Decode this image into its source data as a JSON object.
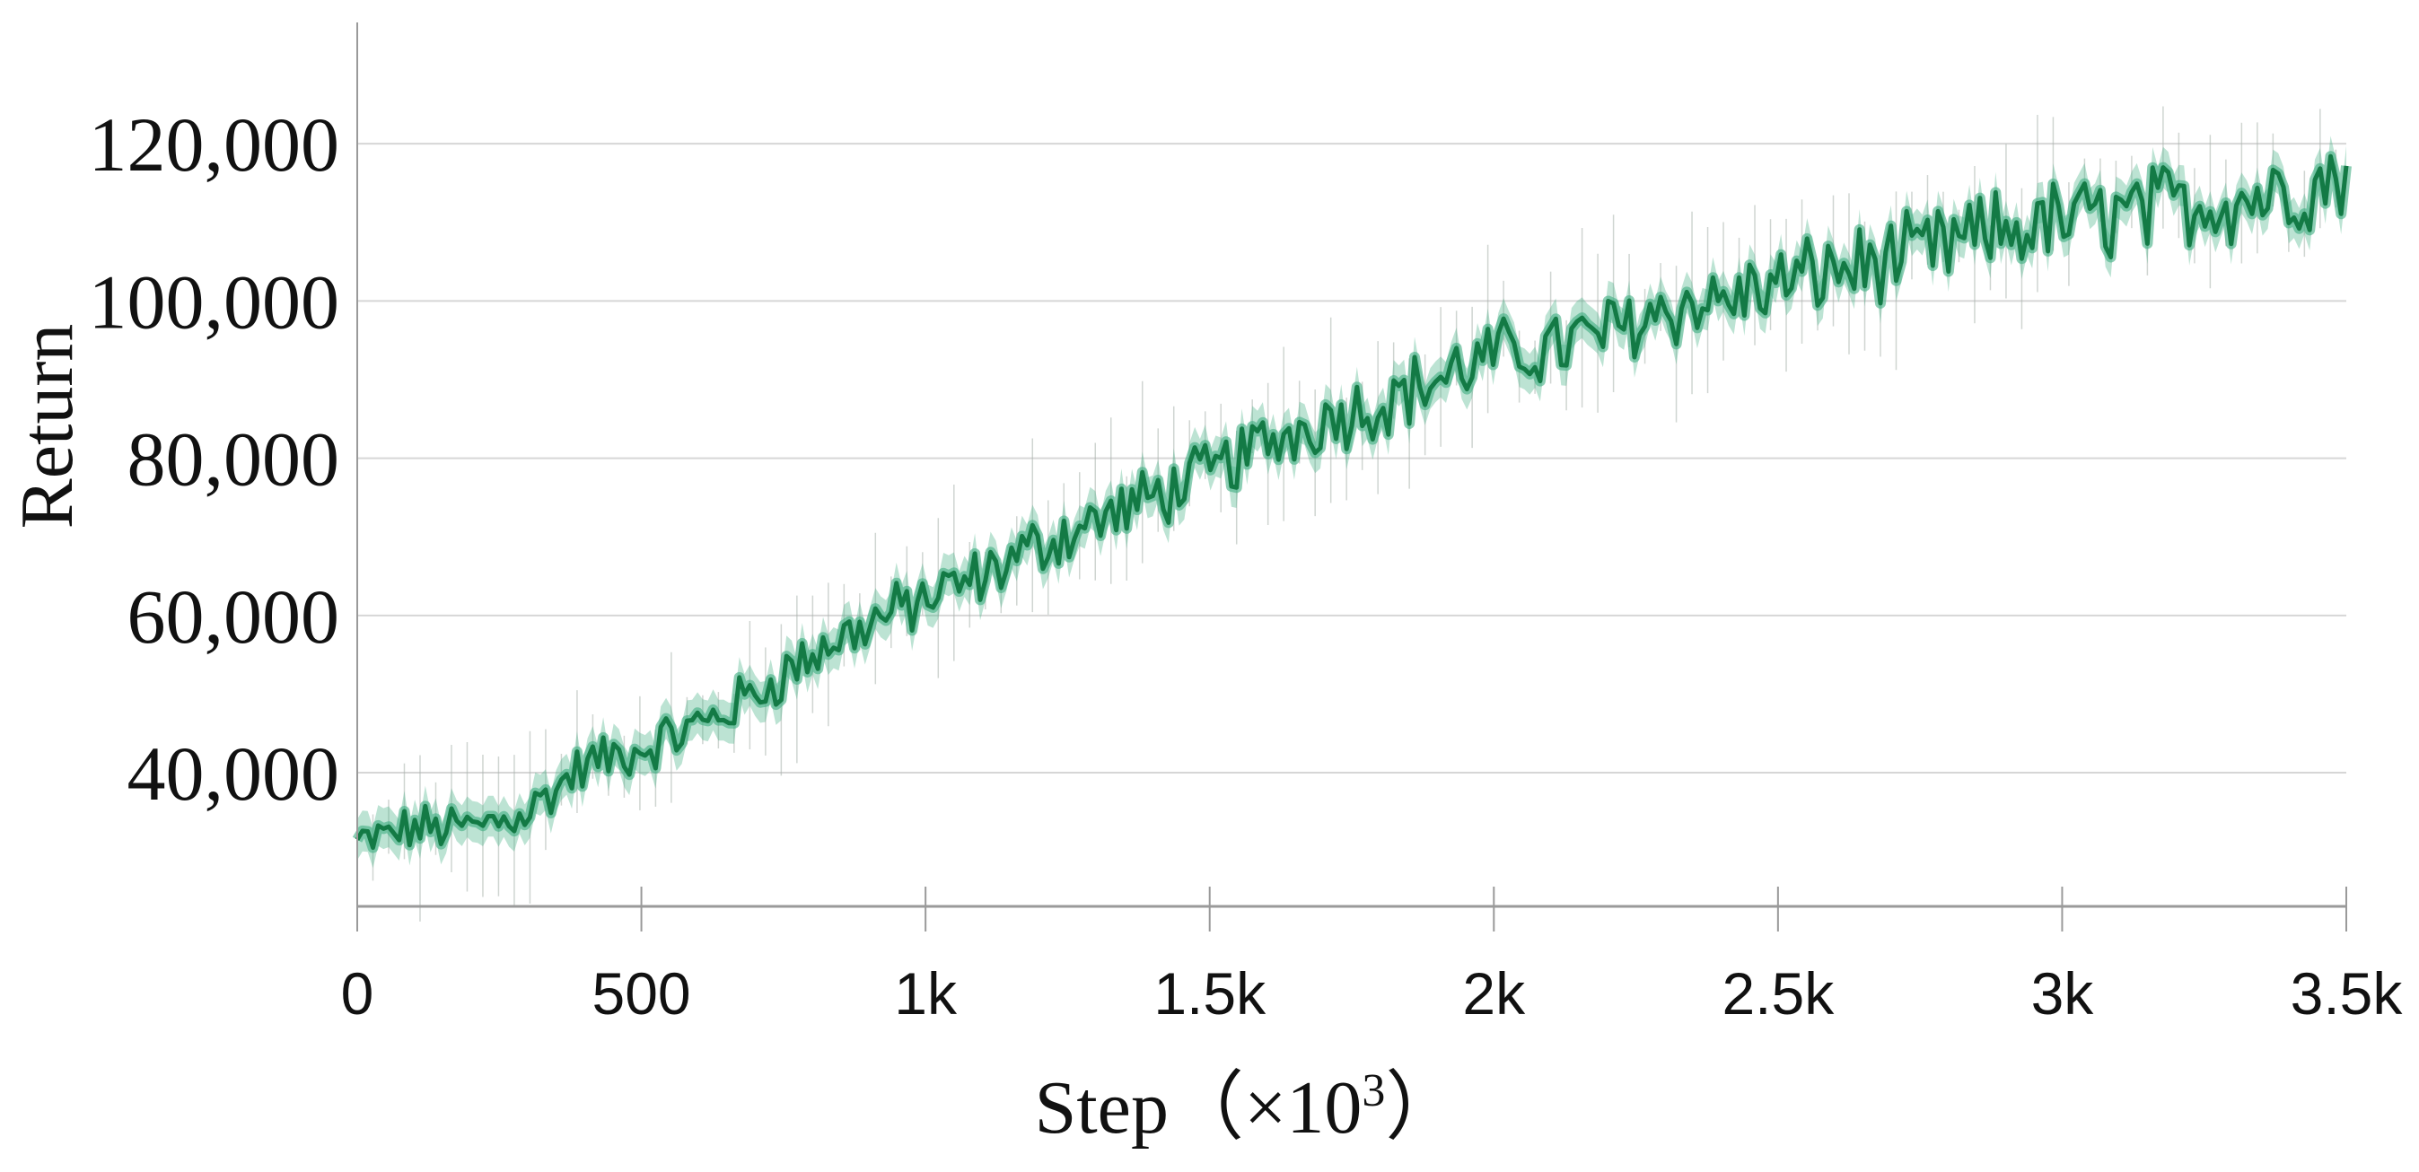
{
  "chart_data": {
    "type": "line",
    "xlabel": "Step (×10³)",
    "xlabel_parts": {
      "main": "Step",
      "open": "（×10",
      "sup": "3",
      "close": "）"
    },
    "ylabel": "Return",
    "xlim": [
      0,
      3500
    ],
    "ylim": [
      23000,
      132000
    ],
    "x_ticks": [
      0,
      500,
      1000,
      1500,
      2000,
      2500,
      3000,
      3500
    ],
    "x_tick_labels": [
      "0",
      "500",
      "1k",
      "1.5k",
      "2k",
      "2.5k",
      "3k",
      "3.5k"
    ],
    "y_ticks": [
      40000,
      60000,
      80000,
      100000,
      120000
    ],
    "y_tick_labels": [
      "40,000",
      "60,000",
      "80,000",
      "100,000",
      "120,000"
    ],
    "grid": "horizontal",
    "legend": "none",
    "colors": {
      "line": "#137a45",
      "band": "#3fae82",
      "spike": "#a9b3ad",
      "grid": "#d6d6d6",
      "axis": "#9a9a9a"
    },
    "series": [
      {
        "x": [
          0,
          100,
          200,
          300,
          400,
          500,
          600,
          700,
          800,
          900,
          1000,
          1100,
          1200,
          1300,
          1400,
          1500,
          1600,
          1700,
          1800,
          1900,
          2000,
          2100,
          2200,
          2300,
          2400,
          2500,
          2600,
          2700,
          2800,
          2900,
          3000,
          3100,
          3200,
          3300,
          3400,
          3500
        ],
        "values": [
          31000,
          33000,
          33000,
          35000,
          41000,
          43000,
          46000,
          50000,
          55000,
          59000,
          62000,
          65000,
          69000,
          72000,
          75000,
          78000,
          82000,
          85000,
          87000,
          90000,
          93000,
          94000,
          96000,
          99000,
          100000,
          102000,
          104000,
          105000,
          107000,
          109000,
          110000,
          111000,
          112000,
          113000,
          114000,
          116000
        ]
      }
    ]
  }
}
